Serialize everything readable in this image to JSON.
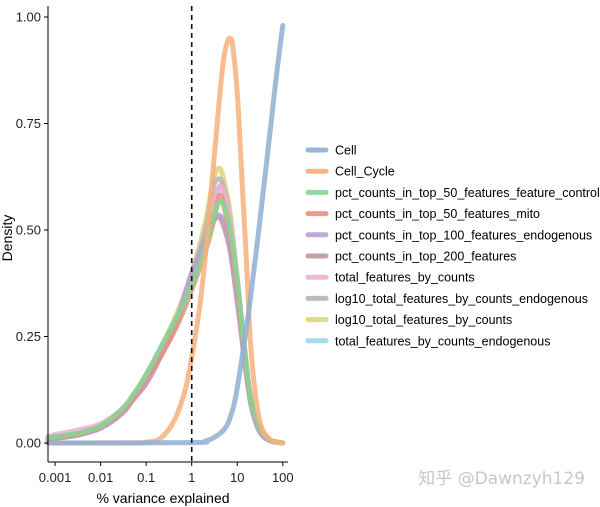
{
  "chart_data": {
    "type": "line",
    "subtype": "density",
    "title": "",
    "xlabel": "% variance explained",
    "ylabel": "Density",
    "xscale": "log10",
    "xlim": [
      0.0007,
      130
    ],
    "ylim": [
      -0.01,
      1.0
    ],
    "x_ticks": [
      {
        "value": 0.001,
        "label": "0.001"
      },
      {
        "value": 0.01,
        "label": "0.01"
      },
      {
        "value": 0.1,
        "label": "0.1"
      },
      {
        "value": 1,
        "label": "1"
      },
      {
        "value": 10,
        "label": "10"
      },
      {
        "value": 100,
        "label": "100"
      }
    ],
    "y_ticks": [
      {
        "value": 0,
        "label": "0.00"
      },
      {
        "value": 0.25,
        "label": "0.25"
      },
      {
        "value": 0.5,
        "label": "0.50"
      },
      {
        "value": 0.75,
        "label": "0.75"
      },
      {
        "value": 1.0,
        "label": "1.00"
      }
    ],
    "reference_line": {
      "x": 1,
      "style": "dashed"
    },
    "legend_position": "right",
    "series": [
      {
        "name": "Cell",
        "color": "#8fafd4",
        "x": [
          0.0007,
          1,
          2,
          3,
          5,
          7,
          10,
          20,
          40,
          70,
          100
        ],
        "y": [
          0,
          0.001,
          0.005,
          0.012,
          0.03,
          0.06,
          0.13,
          0.35,
          0.62,
          0.85,
          0.98
        ]
      },
      {
        "name": "Cell_Cycle",
        "color": "#f6b07c",
        "x": [
          0.0007,
          0.05,
          0.1,
          0.2,
          0.4,
          0.7,
          1,
          1.5,
          2,
          3,
          4,
          5,
          6,
          7,
          8,
          10,
          13,
          16,
          20,
          30,
          50,
          100
        ],
        "y": [
          0,
          0,
          0.002,
          0.01,
          0.05,
          0.12,
          0.2,
          0.32,
          0.44,
          0.65,
          0.8,
          0.9,
          0.94,
          0.95,
          0.93,
          0.82,
          0.6,
          0.42,
          0.22,
          0.06,
          0.01,
          0
        ]
      },
      {
        "name": "pct_counts_in_top_50_features_feature_control",
        "color": "#85d693",
        "x": [
          0.0007,
          0.001,
          0.003,
          0.01,
          0.03,
          0.05,
          0.1,
          0.2,
          0.5,
          1,
          2,
          3,
          4,
          5,
          7,
          10,
          15,
          20,
          30,
          50,
          100
        ],
        "y": [
          0.012,
          0.015,
          0.022,
          0.04,
          0.08,
          0.11,
          0.16,
          0.22,
          0.3,
          0.37,
          0.46,
          0.53,
          0.565,
          0.56,
          0.5,
          0.38,
          0.2,
          0.1,
          0.04,
          0.008,
          0
        ]
      },
      {
        "name": "pct_counts_in_top_50_features_mito",
        "color": "#ea8e82",
        "x": [
          0.0007,
          0.001,
          0.003,
          0.01,
          0.03,
          0.05,
          0.1,
          0.2,
          0.5,
          1,
          2,
          3,
          4,
          5,
          7,
          10,
          15,
          20,
          30,
          50,
          100
        ],
        "y": [
          0.01,
          0.013,
          0.02,
          0.038,
          0.075,
          0.1,
          0.15,
          0.2,
          0.28,
          0.36,
          0.45,
          0.52,
          0.58,
          0.56,
          0.48,
          0.36,
          0.2,
          0.1,
          0.04,
          0.008,
          0
        ]
      },
      {
        "name": "pct_counts_in_top_100_features_endogenous",
        "color": "#b9a0d8",
        "x": [
          0.0007,
          0.001,
          0.003,
          0.01,
          0.03,
          0.05,
          0.1,
          0.2,
          0.5,
          1,
          2,
          3,
          4,
          5,
          7,
          10,
          15,
          20,
          30,
          50,
          100
        ],
        "y": [
          0.008,
          0.011,
          0.018,
          0.035,
          0.07,
          0.1,
          0.14,
          0.2,
          0.3,
          0.4,
          0.48,
          0.53,
          0.535,
          0.52,
          0.46,
          0.34,
          0.18,
          0.09,
          0.03,
          0.006,
          0
        ]
      },
      {
        "name": "pct_counts_in_top_200_features",
        "color": "#bf9a92",
        "x": [
          0.0007,
          0.001,
          0.003,
          0.01,
          0.03,
          0.05,
          0.1,
          0.2,
          0.5,
          1,
          2,
          3,
          4,
          5,
          7,
          10,
          15,
          20,
          30,
          50,
          100
        ],
        "y": [
          0.008,
          0.011,
          0.018,
          0.035,
          0.07,
          0.1,
          0.14,
          0.2,
          0.29,
          0.38,
          0.47,
          0.52,
          0.53,
          0.51,
          0.45,
          0.33,
          0.18,
          0.09,
          0.03,
          0.006,
          0
        ]
      },
      {
        "name": "total_features_by_counts",
        "color": "#f0b0d2",
        "x": [
          0.0007,
          0.001,
          0.003,
          0.01,
          0.03,
          0.05,
          0.1,
          0.2,
          0.5,
          1,
          2,
          3,
          4,
          5,
          7,
          10,
          15,
          20,
          30,
          50,
          100
        ],
        "y": [
          0.015,
          0.02,
          0.03,
          0.045,
          0.08,
          0.11,
          0.15,
          0.21,
          0.3,
          0.38,
          0.47,
          0.55,
          0.6,
          0.59,
          0.52,
          0.38,
          0.2,
          0.1,
          0.04,
          0.008,
          0
        ]
      },
      {
        "name": "log10_total_features_by_counts_endogenous",
        "color": "#b5b5b5",
        "x": [
          0.0007,
          0.001,
          0.003,
          0.01,
          0.03,
          0.05,
          0.1,
          0.2,
          0.5,
          1,
          2,
          3,
          4,
          5,
          7,
          10,
          15,
          20,
          30,
          50,
          100
        ],
        "y": [
          0.01,
          0.014,
          0.02,
          0.04,
          0.08,
          0.11,
          0.16,
          0.22,
          0.3,
          0.39,
          0.5,
          0.6,
          0.62,
          0.6,
          0.52,
          0.38,
          0.2,
          0.1,
          0.04,
          0.008,
          0
        ]
      },
      {
        "name": "log10_total_features_by_counts",
        "color": "#dcd57c",
        "x": [
          0.0007,
          0.001,
          0.003,
          0.01,
          0.03,
          0.05,
          0.1,
          0.2,
          0.5,
          1,
          2,
          3,
          4,
          5,
          7,
          10,
          15,
          20,
          30,
          50,
          100
        ],
        "y": [
          0.01,
          0.013,
          0.02,
          0.04,
          0.08,
          0.11,
          0.16,
          0.22,
          0.31,
          0.4,
          0.52,
          0.62,
          0.645,
          0.62,
          0.54,
          0.38,
          0.2,
          0.1,
          0.04,
          0.008,
          0
        ]
      },
      {
        "name": "total_features_by_counts_endogenous",
        "color": "#9ed6e8",
        "x": [
          0.0007,
          0.001,
          0.003,
          0.01,
          0.03,
          0.05,
          0.1,
          0.2,
          0.5,
          1,
          2,
          3,
          4,
          5,
          7,
          10,
          15,
          20,
          30,
          50,
          100
        ],
        "y": [
          0.012,
          0.016,
          0.024,
          0.042,
          0.08,
          0.11,
          0.16,
          0.22,
          0.3,
          0.38,
          0.48,
          0.56,
          0.6,
          0.6,
          0.53,
          0.39,
          0.21,
          0.1,
          0.04,
          0.008,
          0
        ]
      }
    ]
  },
  "watermark": "知乎 @Dawnzyh129"
}
